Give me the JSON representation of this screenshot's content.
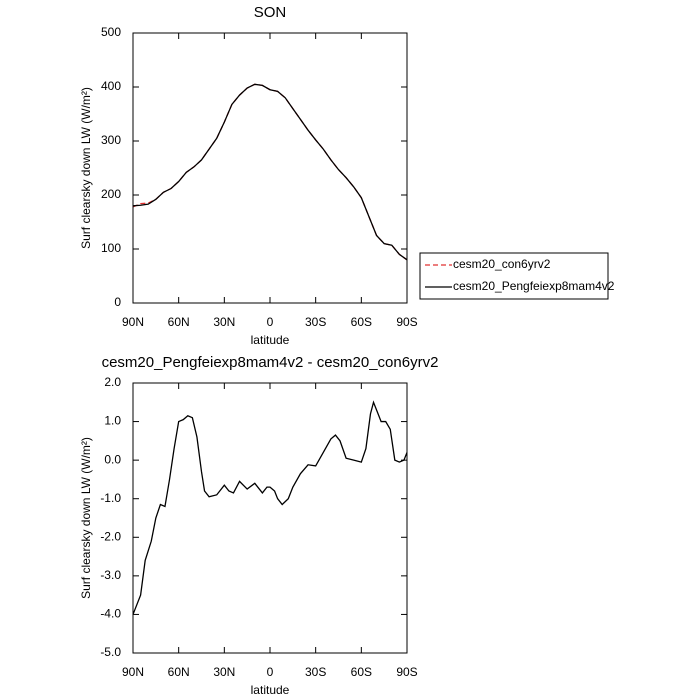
{
  "chart_data": [
    {
      "type": "line",
      "title": "SON",
      "xlabel": "latitude",
      "ylabel": "Surf clearsky down LW (W/m²)",
      "x": [
        90,
        85,
        80,
        75,
        70,
        65,
        60,
        55,
        50,
        45,
        40,
        35,
        30,
        25,
        20,
        15,
        10,
        5,
        0,
        -5,
        -10,
        -15,
        -20,
        -25,
        -30,
        -35,
        -40,
        -45,
        -50,
        -55,
        -60,
        -65,
        -70,
        -75,
        -80,
        -85,
        -90
      ],
      "series": [
        {
          "name": "cesm20_con6yrv2",
          "color": "#e03030",
          "dash": true,
          "values": [
            178,
            184,
            185,
            192,
            205,
            212,
            225,
            242,
            252,
            265,
            285,
            305,
            335,
            368,
            385,
            398,
            405,
            403,
            395,
            392,
            380,
            360,
            340,
            320,
            302,
            285,
            265,
            247,
            232,
            215,
            195,
            160,
            125,
            110,
            107,
            90,
            80
          ]
        },
        {
          "name": "cesm20_Pengfeiexp8mam4v2",
          "color": "#000000",
          "dash": false,
          "values": [
            180,
            181,
            183,
            192,
            205,
            212,
            225,
            242,
            252,
            265,
            285,
            305,
            335,
            368,
            385,
            398,
            405,
            403,
            395,
            392,
            380,
            360,
            340,
            320,
            302,
            285,
            265,
            247,
            232,
            215,
            195,
            160,
            125,
            110,
            107,
            90,
            80
          ]
        }
      ],
      "xlim": [
        90,
        -90
      ],
      "xticks": [
        {
          "value": 90,
          "label": "90N"
        },
        {
          "value": 60,
          "label": "60N"
        },
        {
          "value": 30,
          "label": "30N"
        },
        0,
        {
          "value": -30,
          "label": "30S"
        },
        {
          "value": -60,
          "label": "60S"
        },
        {
          "value": -90,
          "label": "90S"
        }
      ],
      "ylim": [
        0,
        500
      ],
      "yticks": [
        0,
        100,
        200,
        300,
        400,
        500
      ],
      "legend": "outside-right"
    },
    {
      "type": "line",
      "title": "cesm20_Pengfeiexp8mam4v2 - cesm20_con6yrv2",
      "xlabel": "latitude",
      "ylabel": "Surf clearsky down LW (W/m²)",
      "x": [
        90,
        85,
        82,
        78,
        75,
        72,
        69,
        66,
        63,
        60,
        57,
        54,
        51,
        48,
        45,
        43,
        40,
        35,
        30,
        27,
        24,
        20,
        15,
        10,
        5,
        2,
        0,
        -3,
        -5,
        -8,
        -12,
        -15,
        -20,
        -25,
        -30,
        -35,
        -40,
        -43,
        -46,
        -50,
        -55,
        -60,
        -63,
        -66,
        -68,
        -70,
        -73,
        -76,
        -79,
        -82,
        -85,
        -88,
        -90
      ],
      "values": [
        -4.0,
        -3.5,
        -2.6,
        -2.1,
        -1.5,
        -1.15,
        -1.2,
        -0.5,
        0.3,
        1.0,
        1.05,
        1.15,
        1.1,
        0.6,
        -0.3,
        -0.8,
        -0.95,
        -0.9,
        -0.65,
        -0.8,
        -0.85,
        -0.55,
        -0.75,
        -0.6,
        -0.85,
        -0.7,
        -0.7,
        -0.8,
        -1.0,
        -1.15,
        -1.0,
        -0.7,
        -0.35,
        -0.12,
        -0.15,
        0.2,
        0.55,
        0.65,
        0.5,
        0.05,
        0.0,
        -0.05,
        0.3,
        1.2,
        1.5,
        1.3,
        1.0,
        1.0,
        0.8,
        0.0,
        -0.05,
        0.0,
        0.2
      ],
      "color": "#000000",
      "xlim": [
        90,
        -90
      ],
      "xticks": [
        {
          "value": 90,
          "label": "90N"
        },
        {
          "value": 60,
          "label": "60N"
        },
        {
          "value": 30,
          "label": "30N"
        },
        0,
        {
          "value": -30,
          "label": "30S"
        },
        {
          "value": -60,
          "label": "60S"
        },
        {
          "value": -90,
          "label": "90S"
        }
      ],
      "ylim": [
        -5,
        2
      ],
      "yticks": [
        {
          "value": -5,
          "label": "-5.0"
        },
        {
          "value": -4,
          "label": "-4.0"
        },
        {
          "value": -3,
          "label": "-3.0"
        },
        {
          "value": -2,
          "label": "-2.0"
        },
        {
          "value": -1,
          "label": "-1.0"
        },
        {
          "value": 0,
          "label": "0.0"
        },
        {
          "value": 1,
          "label": "1.0"
        },
        {
          "value": 2,
          "label": "2.0"
        }
      ]
    }
  ]
}
